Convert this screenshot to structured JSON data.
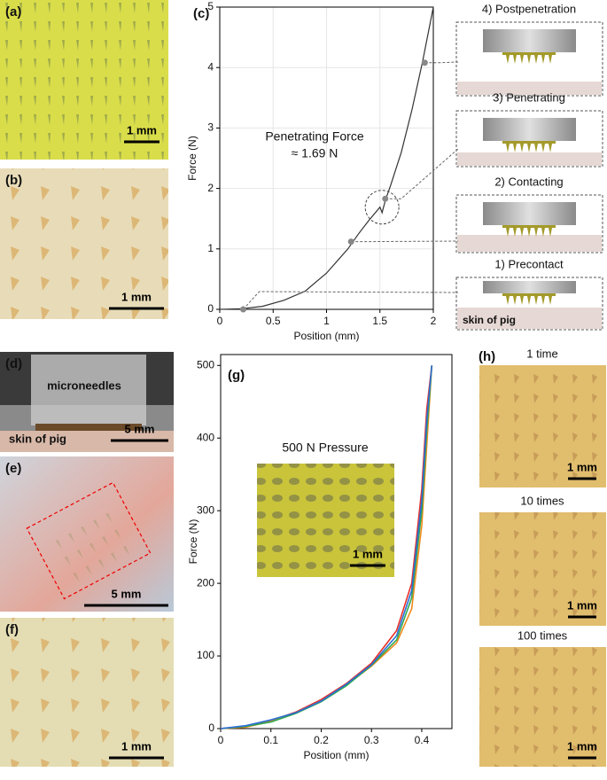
{
  "chart_data": [
    {
      "type": "line",
      "label": "(c)",
      "xlabel": "Position (mm)",
      "ylabel": "Force (N)",
      "x": [
        0,
        0.2,
        0.4,
        0.6,
        0.8,
        1.0,
        1.2,
        1.3,
        1.4,
        1.5,
        1.52,
        1.55,
        1.6,
        1.7,
        1.8,
        1.9,
        2.0
      ],
      "series": [
        {
          "color": "#333333",
          "values": [
            0,
            0.01,
            0.05,
            0.15,
            0.3,
            0.6,
            1.0,
            1.25,
            1.48,
            1.69,
            1.6,
            1.8,
            2.05,
            2.6,
            3.3,
            4.1,
            5.0
          ]
        }
      ],
      "markers": {
        "x": [
          0.22,
          1.23,
          1.55,
          1.92
        ],
        "y": [
          0,
          1.12,
          1.83,
          4.08
        ],
        "color": "#888888"
      },
      "annotations": [
        "Penetrating Force",
        "≈ 1.69 N"
      ],
      "xlim": [
        0,
        2
      ],
      "xticks": [
        0,
        0.5,
        1,
        1.5,
        2
      ],
      "ylim": [
        0,
        5
      ],
      "yticks": [
        0,
        1,
        2,
        3,
        4,
        5
      ],
      "grid": true
    },
    {
      "type": "line",
      "label": "(g)",
      "xlabel": "Position (mm)",
      "ylabel": "Force (N)",
      "x": [
        0,
        0.05,
        0.1,
        0.15,
        0.2,
        0.25,
        0.3,
        0.35,
        0.38,
        0.4,
        0.41,
        0.42
      ],
      "series": [
        {
          "color": "#e8312a",
          "values": [
            0,
            3,
            11,
            23,
            40,
            62,
            90,
            135,
            200,
            330,
            440,
            500
          ]
        },
        {
          "color": "#f08a1c",
          "values": [
            0,
            2,
            10,
            22,
            38,
            60,
            86,
            118,
            165,
            280,
            390,
            500
          ]
        },
        {
          "color": "#2fa84f",
          "values": [
            0,
            3,
            9,
            21,
            37,
            59,
            87,
            122,
            180,
            300,
            410,
            500
          ]
        },
        {
          "color": "#2a6fd6",
          "values": [
            0,
            4,
            12,
            22,
            38,
            61,
            88,
            128,
            190,
            315,
            425,
            500
          ]
        }
      ],
      "inset_text": "500 N Pressure",
      "inset_scale": "1 mm",
      "xlim": [
        0,
        0.46
      ],
      "xticks": [
        0,
        0.1,
        0.2,
        0.3,
        0.4
      ],
      "ylim": [
        0,
        515
      ],
      "yticks": [
        0,
        100,
        200,
        300,
        400,
        500
      ],
      "grid": false
    }
  ],
  "photos": [
    {
      "label": "(a)",
      "scale": "1 mm"
    },
    {
      "label": "(b)",
      "scale": "1 mm"
    },
    {
      "label": "(d)",
      "scale": "5 mm",
      "texts": [
        "microneedles",
        "skin of pig"
      ]
    },
    {
      "label": "(e)",
      "scale": "5 mm"
    },
    {
      "label": "(f)",
      "scale": "1 mm"
    }
  ],
  "h_panel": {
    "label": "(h)",
    "photos": [
      {
        "caption": "1 time",
        "scale": "1 mm"
      },
      {
        "caption": "10 times",
        "scale": "1 mm"
      },
      {
        "caption": "100 times",
        "scale": "1 mm"
      }
    ]
  },
  "stages": [
    "4) Postpenetration",
    "3) Penetrating",
    "2) Contacting",
    "1) Precontact"
  ],
  "stage_skin": "skin of pig"
}
